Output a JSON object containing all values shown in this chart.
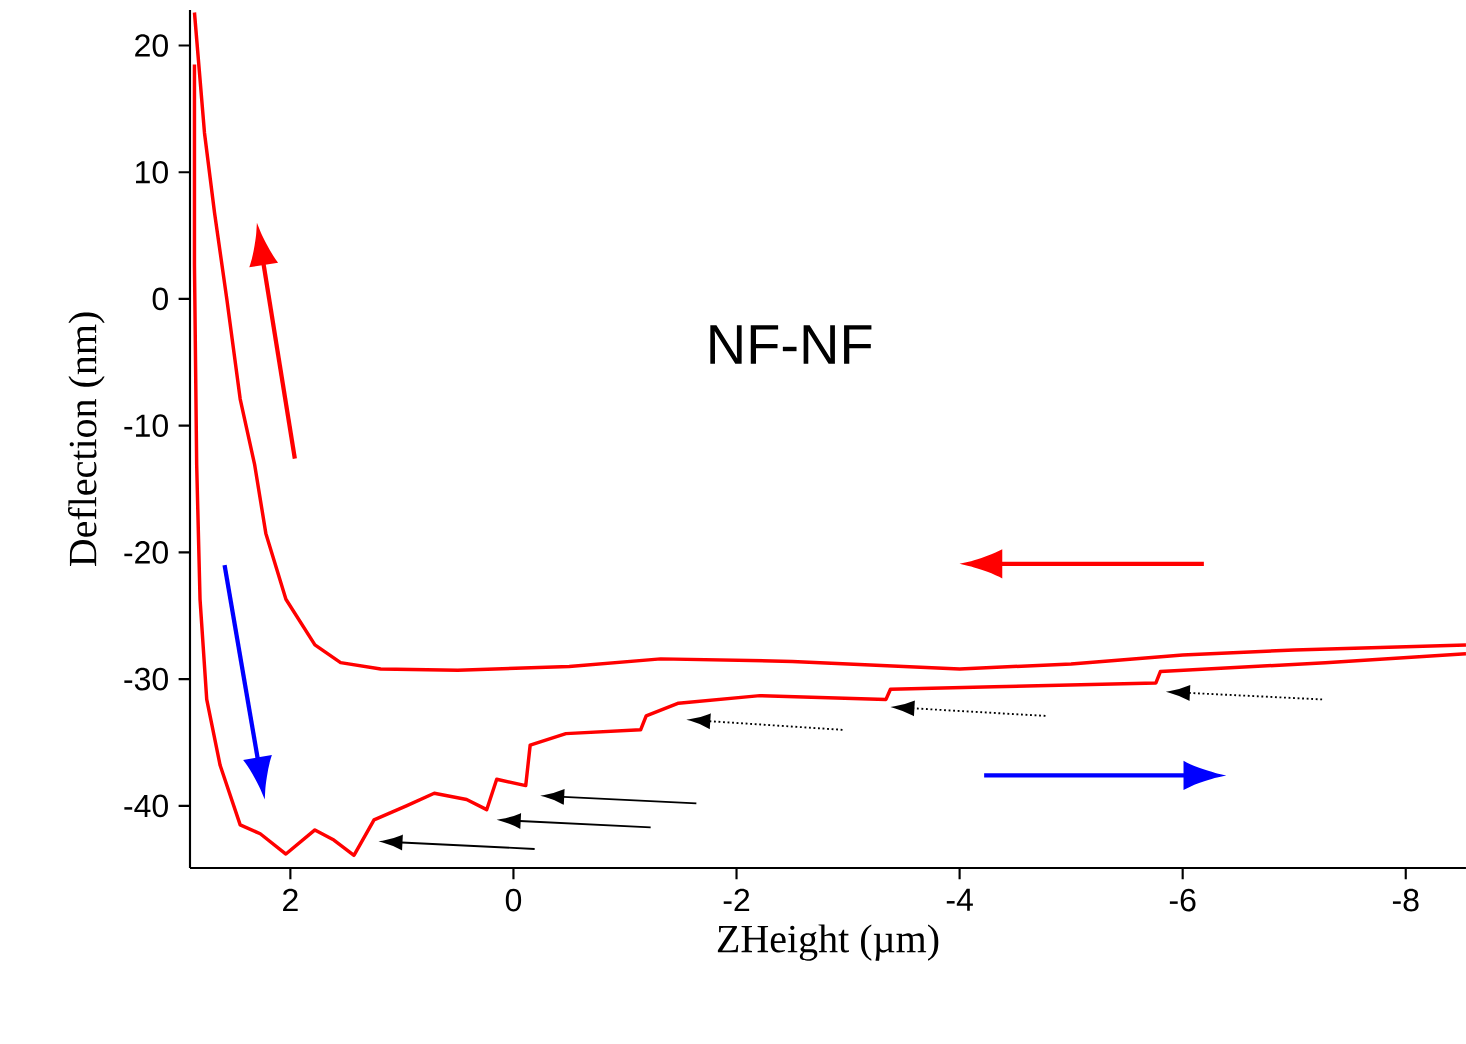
{
  "chart_data": {
    "type": "line",
    "xlabel": "ZHeight (µm)",
    "ylabel": "Deflection (nm)",
    "xlim": [
      2.9,
      -8.54
    ],
    "ylim": [
      -44.9,
      22.8
    ],
    "xticks": [
      2,
      0,
      -2,
      -4,
      -6,
      -8
    ],
    "yticks": [
      20,
      10,
      0,
      -10,
      -20,
      -30,
      -40
    ],
    "grid": false,
    "marker": "none",
    "line_style": "solid",
    "annotations": [
      "NF-NF"
    ],
    "series": [
      {
        "color": "#ff0000",
        "x": [
          2.86,
          2.77,
          2.68,
          2.57,
          2.45,
          2.32,
          2.22,
          2.04,
          1.78,
          1.55,
          1.19,
          0.5,
          -0.5,
          -1.32,
          -2.5,
          -3.5,
          -4.0,
          -5.0,
          -6.0,
          -7.0,
          -8.54
        ],
        "values": [
          22.6,
          13.1,
          6.8,
          0,
          -7.9,
          -13.1,
          -18.5,
          -23.7,
          -27.3,
          -28.7,
          -29.2,
          -29.3,
          -29.0,
          -28.4,
          -28.6,
          -29.0,
          -29.2,
          -28.8,
          -28.1,
          -27.7,
          -27.3
        ]
      },
      {
        "color": "#ff0000",
        "x": [
          2.86,
          2.86,
          2.84,
          2.81,
          2.75,
          2.63,
          2.45,
          2.27,
          2.04,
          1.78,
          1.61,
          1.43,
          1.25,
          0.96,
          0.71,
          0.42,
          0.24,
          0.15,
          -0.11,
          -0.15,
          -0.47,
          -1.14,
          -1.19,
          -1.48,
          -2.21,
          -3.34,
          -3.38,
          -4.31,
          -5.76,
          -5.8,
          -7.28,
          -8.54
        ],
        "values": [
          18.5,
          2.7,
          -13.1,
          -23.7,
          -31.6,
          -36.8,
          -41.5,
          -42.2,
          -43.8,
          -41.9,
          -42.7,
          -43.9,
          -41.1,
          -40.0,
          -39.0,
          -39.5,
          -40.3,
          -37.9,
          -38.4,
          -35.2,
          -34.3,
          -34.0,
          -32.9,
          -31.9,
          -31.3,
          -31.6,
          -30.8,
          -30.6,
          -30.3,
          -29.4,
          -28.7,
          -28.0
        ]
      }
    ]
  }
}
